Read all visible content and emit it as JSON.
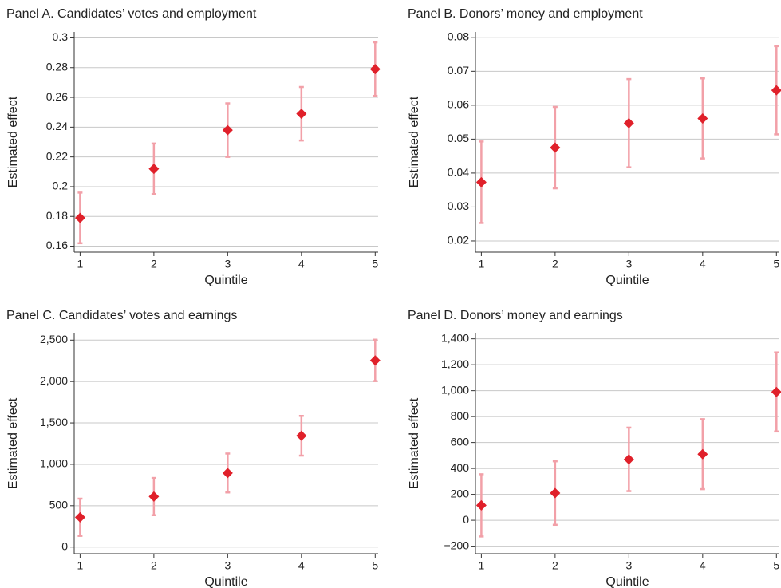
{
  "chart_data": [
    {
      "type": "scatter",
      "title": "Panel A. Candidates’ votes and employment",
      "xlabel": "Quintile",
      "ylabel": "Estimated effect",
      "x": [
        1,
        2,
        3,
        4,
        5
      ],
      "values": [
        0.179,
        0.212,
        0.238,
        0.249,
        0.279
      ],
      "errors": [
        0.017,
        0.017,
        0.018,
        0.018,
        0.018
      ],
      "color": "#e0202a",
      "error_color": "#f2a0a8",
      "grid": true,
      "xlim": [
        0.92,
        5.04
      ],
      "xticks": [
        1,
        2,
        3,
        4,
        5
      ],
      "ylim": [
        0.156,
        0.304
      ],
      "yticks": [
        0.16,
        0.18,
        0.2,
        0.22,
        0.24,
        0.26,
        0.28,
        0.3
      ]
    },
    {
      "type": "scatter",
      "title": "Panel B. Donors’ money and employment",
      "xlabel": "Quintile",
      "ylabel": "Estimated effect",
      "x": [
        1,
        2,
        3,
        4,
        5
      ],
      "values": [
        0.0373,
        0.0475,
        0.0547,
        0.0561,
        0.0644
      ],
      "errors": [
        0.012,
        0.012,
        0.013,
        0.0118,
        0.013
      ],
      "color": "#e0202a",
      "error_color": "#f2a0a8",
      "grid": true,
      "xlim": [
        0.92,
        5.04
      ],
      "xticks": [
        1,
        2,
        3,
        4,
        5
      ],
      "ylim": [
        0.0167,
        0.0816
      ],
      "yticks": [
        0.02,
        0.03,
        0.04,
        0.05,
        0.06,
        0.07,
        0.08
      ]
    },
    {
      "type": "scatter",
      "title": "Panel C. Candidates’ votes and earnings",
      "xlabel": "Quintile",
      "ylabel": "Estimated effect",
      "x": [
        1,
        2,
        3,
        4,
        5
      ],
      "values": [
        360,
        610,
        895,
        1345,
        2255
      ],
      "errors": [
        225,
        225,
        235,
        240,
        250
      ],
      "color": "#e0202a",
      "error_color": "#f2a0a8",
      "grid": true,
      "xlim": [
        0.92,
        5.04
      ],
      "xticks": [
        1,
        2,
        3,
        4,
        5
      ],
      "ylim": [
        -80,
        2580
      ],
      "yticks": [
        0,
        500,
        {
          "value": 1000,
          "label": "1,000"
        },
        {
          "value": 1500,
          "label": "1,500"
        },
        {
          "value": 2000,
          "label": "2,000"
        },
        {
          "value": 2500,
          "label": "2,500"
        }
      ]
    },
    {
      "type": "scatter",
      "title": "Panel D. Donors’ money and earnings",
      "xlabel": "Quintile",
      "ylabel": "Estimated effect",
      "x": [
        1,
        2,
        3,
        4,
        5
      ],
      "values": [
        115,
        210,
        470,
        510,
        990
      ],
      "errors": [
        240,
        245,
        245,
        270,
        305
      ],
      "color": "#e0202a",
      "error_color": "#f2a0a8",
      "grid": true,
      "xlim": [
        0.92,
        5.04
      ],
      "xticks": [
        1,
        2,
        3,
        4,
        5
      ],
      "ylim": [
        -258,
        1441
      ],
      "yticks": [
        {
          "value": -200,
          "label": "−200"
        },
        0,
        200,
        400,
        600,
        800,
        {
          "value": 1000,
          "label": "1,000"
        },
        {
          "value": 1200,
          "label": "1,200"
        },
        {
          "value": 1400,
          "label": "1,400"
        }
      ]
    }
  ]
}
